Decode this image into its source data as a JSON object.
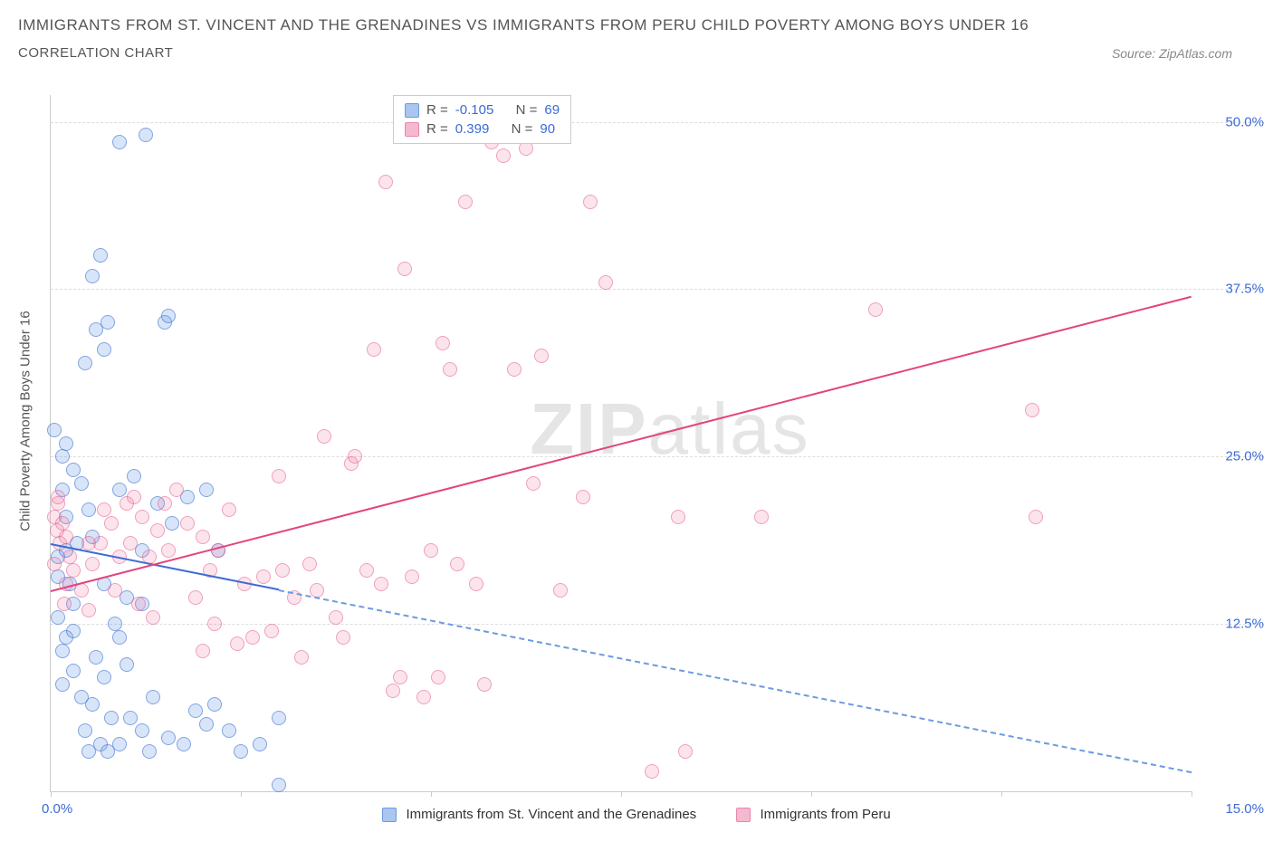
{
  "header": {
    "title": "IMMIGRANTS FROM ST. VINCENT AND THE GRENADINES VS IMMIGRANTS FROM PERU CHILD POVERTY AMONG BOYS UNDER 16",
    "subtitle": "CORRELATION CHART",
    "source": "Source: ZipAtlas.com"
  },
  "chart": {
    "type": "scatter",
    "y_label": "Child Poverty Among Boys Under 16",
    "xlim": [
      0,
      15
    ],
    "ylim": [
      0,
      52
    ],
    "x_tick_positions": [
      0,
      2.5,
      5,
      7.5,
      10,
      12.5,
      15
    ],
    "x_tick_labels_shown": {
      "left": "0.0%",
      "right": "15.0%"
    },
    "y_grid": [
      {
        "value": 12.5,
        "label": "12.5%"
      },
      {
        "value": 25.0,
        "label": "25.0%"
      },
      {
        "value": 37.5,
        "label": "37.5%"
      },
      {
        "value": 50.0,
        "label": "50.0%"
      }
    ],
    "background_color": "#ffffff",
    "grid_color": "#dddddd",
    "axis_color": "#cccccc",
    "tick_label_color": "#3b6bd6",
    "label_font_size": 15,
    "title_color": "#555555",
    "title_font_size": 17,
    "subtitle_font_size": 15,
    "series": [
      {
        "name": "Immigrants from St. Vincent and the Grenadines",
        "fill_color": "rgba(100,150,230,0.25)",
        "stroke_color": "rgba(70,120,210,0.6)",
        "swatch_fill": "#a9c5f0",
        "swatch_border": "#6b9be0",
        "marker_radius": 8,
        "R": "-0.105",
        "N": "69",
        "trend": {
          "color_solid": "#3b6bd6",
          "color_dashed": "#6b9be0",
          "y_at_x0": 18.5,
          "y_at_x15": 1.5,
          "solid_x_end": 3.0
        },
        "points": [
          [
            0.1,
            17.5
          ],
          [
            0.1,
            16.0
          ],
          [
            0.15,
            22.5
          ],
          [
            0.2,
            20.5
          ],
          [
            0.15,
            25.0
          ],
          [
            0.2,
            18.0
          ],
          [
            0.25,
            15.5
          ],
          [
            0.3,
            14.0
          ],
          [
            0.1,
            13.0
          ],
          [
            0.2,
            11.5
          ],
          [
            0.15,
            10.5
          ],
          [
            0.3,
            12.0
          ],
          [
            0.2,
            26.0
          ],
          [
            0.4,
            23.0
          ],
          [
            0.6,
            34.5
          ],
          [
            0.7,
            33.0
          ],
          [
            0.75,
            35.0
          ],
          [
            0.55,
            38.5
          ],
          [
            0.65,
            40.0
          ],
          [
            0.9,
            48.5
          ],
          [
            1.25,
            49.0
          ],
          [
            0.45,
            32.0
          ],
          [
            0.3,
            24.0
          ],
          [
            0.5,
            21.0
          ],
          [
            0.55,
            19.0
          ],
          [
            0.7,
            15.5
          ],
          [
            0.9,
            22.5
          ],
          [
            1.1,
            23.5
          ],
          [
            1.5,
            35.0
          ],
          [
            1.55,
            35.5
          ],
          [
            1.2,
            18.0
          ],
          [
            1.4,
            21.5
          ],
          [
            1.6,
            20.0
          ],
          [
            1.8,
            22.0
          ],
          [
            2.2,
            18.0
          ],
          [
            2.05,
            22.5
          ],
          [
            1.0,
            14.5
          ],
          [
            1.2,
            14.0
          ],
          [
            0.15,
            8.0
          ],
          [
            0.3,
            9.0
          ],
          [
            0.4,
            7.0
          ],
          [
            0.55,
            6.5
          ],
          [
            0.7,
            8.5
          ],
          [
            0.6,
            10.0
          ],
          [
            0.9,
            11.5
          ],
          [
            0.8,
            5.5
          ],
          [
            0.85,
            12.5
          ],
          [
            1.0,
            9.5
          ],
          [
            0.45,
            4.5
          ],
          [
            0.5,
            3.0
          ],
          [
            0.65,
            3.5
          ],
          [
            0.75,
            3.0
          ],
          [
            0.9,
            3.5
          ],
          [
            1.05,
            5.5
          ],
          [
            1.2,
            4.5
          ],
          [
            1.3,
            3.0
          ],
          [
            1.35,
            7.0
          ],
          [
            1.55,
            4.0
          ],
          [
            1.75,
            3.5
          ],
          [
            1.9,
            6.0
          ],
          [
            2.05,
            5.0
          ],
          [
            2.15,
            6.5
          ],
          [
            2.35,
            4.5
          ],
          [
            2.5,
            3.0
          ],
          [
            2.75,
            3.5
          ],
          [
            3.0,
            5.5
          ],
          [
            3.0,
            0.5
          ],
          [
            0.35,
            18.5
          ],
          [
            0.05,
            27.0
          ]
        ]
      },
      {
        "name": "Immigrants from Peru",
        "fill_color": "rgba(240,120,160,0.2)",
        "stroke_color": "rgba(230,90,140,0.5)",
        "swatch_fill": "#f5b9cf",
        "swatch_border": "#e985ad",
        "marker_radius": 8,
        "R": "0.399",
        "N": "90",
        "trend": {
          "color_solid": "#e3447f",
          "y_at_x0": 15.0,
          "y_at_x15": 37.0,
          "solid_x_end": 15.0
        },
        "points": [
          [
            0.05,
            20.5
          ],
          [
            0.08,
            19.5
          ],
          [
            0.1,
            21.5
          ],
          [
            0.12,
            18.5
          ],
          [
            0.15,
            20.0
          ],
          [
            0.1,
            22.0
          ],
          [
            0.05,
            17.0
          ],
          [
            0.2,
            19.0
          ],
          [
            0.2,
            15.5
          ],
          [
            0.25,
            17.5
          ],
          [
            0.3,
            16.5
          ],
          [
            0.18,
            14.0
          ],
          [
            0.4,
            15.0
          ],
          [
            0.5,
            18.5
          ],
          [
            0.55,
            17.0
          ],
          [
            0.65,
            18.5
          ],
          [
            0.7,
            21.0
          ],
          [
            0.8,
            20.0
          ],
          [
            0.9,
            17.5
          ],
          [
            1.0,
            21.5
          ],
          [
            1.05,
            18.5
          ],
          [
            1.1,
            22.0
          ],
          [
            1.2,
            20.5
          ],
          [
            1.3,
            17.5
          ],
          [
            1.4,
            19.5
          ],
          [
            1.5,
            21.5
          ],
          [
            1.55,
            18.0
          ],
          [
            1.65,
            22.5
          ],
          [
            1.8,
            20.0
          ],
          [
            1.9,
            14.5
          ],
          [
            2.0,
            19.0
          ],
          [
            2.1,
            16.5
          ],
          [
            2.2,
            18.0
          ],
          [
            2.35,
            21.0
          ],
          [
            2.45,
            11.0
          ],
          [
            2.55,
            15.5
          ],
          [
            2.65,
            11.5
          ],
          [
            2.8,
            16.0
          ],
          [
            2.9,
            12.0
          ],
          [
            3.0,
            23.5
          ],
          [
            3.05,
            16.5
          ],
          [
            3.2,
            14.5
          ],
          [
            3.3,
            10.0
          ],
          [
            3.4,
            17.0
          ],
          [
            3.5,
            15.0
          ],
          [
            3.6,
            26.5
          ],
          [
            3.75,
            13.0
          ],
          [
            3.85,
            11.5
          ],
          [
            3.95,
            24.5
          ],
          [
            4.0,
            25.0
          ],
          [
            4.15,
            16.5
          ],
          [
            4.25,
            33.0
          ],
          [
            4.35,
            15.5
          ],
          [
            4.4,
            45.5
          ],
          [
            4.5,
            7.5
          ],
          [
            4.6,
            8.5
          ],
          [
            4.65,
            39.0
          ],
          [
            4.75,
            16.0
          ],
          [
            4.9,
            7.0
          ],
          [
            5.0,
            18.0
          ],
          [
            5.1,
            8.5
          ],
          [
            5.15,
            33.5
          ],
          [
            5.25,
            31.5
          ],
          [
            5.35,
            17.0
          ],
          [
            5.45,
            44.0
          ],
          [
            5.6,
            15.5
          ],
          [
            5.7,
            8.0
          ],
          [
            5.8,
            48.5
          ],
          [
            5.95,
            47.5
          ],
          [
            6.1,
            31.5
          ],
          [
            6.25,
            48.0
          ],
          [
            6.35,
            23.0
          ],
          [
            6.45,
            32.5
          ],
          [
            6.7,
            15.0
          ],
          [
            7.0,
            22.0
          ],
          [
            7.1,
            44.0
          ],
          [
            7.3,
            38.0
          ],
          [
            7.9,
            1.5
          ],
          [
            8.25,
            20.5
          ],
          [
            8.35,
            3.0
          ],
          [
            9.35,
            20.5
          ],
          [
            10.85,
            36.0
          ],
          [
            12.9,
            28.5
          ],
          [
            12.95,
            20.5
          ],
          [
            2.0,
            10.5
          ],
          [
            2.15,
            12.5
          ],
          [
            0.5,
            13.5
          ],
          [
            0.85,
            15.0
          ],
          [
            1.15,
            14.0
          ],
          [
            1.35,
            13.0
          ]
        ]
      }
    ],
    "stats_legend": {
      "border_color": "#cccccc",
      "bg_color": "#ffffff",
      "label_color": "#555555",
      "value_color": "#3b6bd6",
      "r_label": "R =",
      "n_label": "N ="
    },
    "watermark": {
      "text_bold": "ZIP",
      "text_rest": "atlas",
      "color": "#e5e5e5",
      "font_size": 80
    }
  },
  "bottom_legend": {
    "series1_label": "Immigrants from St. Vincent and the Grenadines",
    "series2_label": "Immigrants from Peru"
  }
}
